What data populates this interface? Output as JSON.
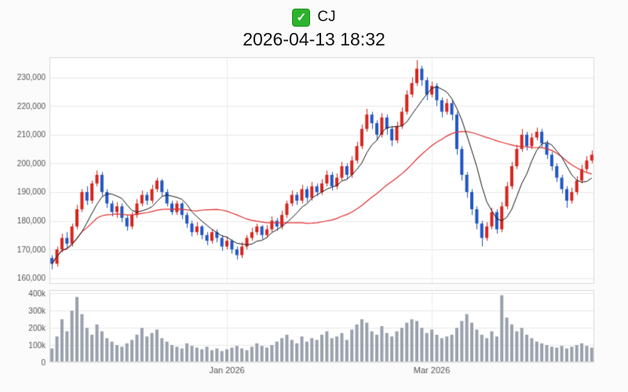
{
  "header": {
    "checkbox": {
      "checked": true,
      "glyph": "✓"
    }
  },
  "chart_data": {
    "type": "candlestick",
    "title": "CJ",
    "timestamp": "2026-04-13 18:32",
    "candle_format": [
      "open",
      "high",
      "low",
      "close"
    ],
    "price_axis": {
      "ylim": [
        158000,
        237000
      ],
      "ticks": [
        {
          "value": 160000,
          "label": "160,000"
        },
        {
          "value": 170000,
          "label": "170,000"
        },
        {
          "value": 180000,
          "label": "180,000"
        },
        {
          "value": 190000,
          "label": "190,000"
        },
        {
          "value": 200000,
          "label": "200,000"
        },
        {
          "value": 210000,
          "label": "210,000"
        },
        {
          "value": 220000,
          "label": "220,000"
        },
        {
          "value": 230000,
          "label": "230,000"
        }
      ]
    },
    "volume_axis": {
      "unit": "k",
      "ylim_k": [
        0,
        420
      ],
      "ticks": [
        {
          "value_k": 0,
          "label": "0"
        },
        {
          "value_k": 100,
          "label": "100k"
        },
        {
          "value_k": 200,
          "label": "200k"
        },
        {
          "value_k": 300,
          "label": "300k"
        },
        {
          "value_k": 400,
          "label": "400k"
        }
      ]
    },
    "x_ticks": [
      {
        "index": 35,
        "label": "Jan 2026"
      },
      {
        "index": 76,
        "label": "Mar 2026"
      }
    ],
    "ma_fast_period": 7,
    "ma_slow_period": 30,
    "colors": {
      "up": "#d6261f",
      "down": "#2257c4",
      "ma_fast": "#1a1a1a",
      "ma_slow": "#e03131",
      "volume": "#9aa1ad",
      "grid": "#e9e9e9",
      "border": "#d9d9d9",
      "tick_text": "#555555"
    },
    "candles": [
      [
        167000,
        168000,
        163000,
        165000
      ],
      [
        165000,
        171000,
        164000,
        170000
      ],
      [
        170000,
        175500,
        169000,
        174000
      ],
      [
        174000,
        176000,
        170500,
        172000
      ],
      [
        172000,
        179000,
        171000,
        178000
      ],
      [
        178000,
        185500,
        177000,
        184000
      ],
      [
        184000,
        191000,
        183000,
        190000
      ],
      [
        190000,
        192000,
        185500,
        187000
      ],
      [
        187000,
        194000,
        186000,
        193000
      ],
      [
        193000,
        197500,
        192000,
        196000
      ],
      [
        196000,
        197000,
        188500,
        190000
      ],
      [
        190000,
        191000,
        184500,
        186000
      ],
      [
        186000,
        187000,
        181500,
        183000
      ],
      [
        183000,
        186500,
        181000,
        185000
      ],
      [
        185000,
        186000,
        179500,
        181000
      ],
      [
        181000,
        182000,
        176500,
        178000
      ],
      [
        178000,
        183000,
        177000,
        182000
      ],
      [
        182000,
        187500,
        181000,
        186000
      ],
      [
        186000,
        190500,
        185000,
        189000
      ],
      [
        189000,
        190000,
        185500,
        187000
      ],
      [
        187000,
        192500,
        186000,
        191000
      ],
      [
        191000,
        195000,
        190000,
        194000
      ],
      [
        194000,
        194500,
        188500,
        190000
      ],
      [
        190000,
        191000,
        185000,
        186000
      ],
      [
        186000,
        187000,
        182000,
        183000
      ],
      [
        183000,
        187000,
        182000,
        186000
      ],
      [
        186000,
        186500,
        180500,
        182000
      ],
      [
        182000,
        183000,
        177500,
        179000
      ],
      [
        179000,
        180000,
        174500,
        176000
      ],
      [
        176000,
        179500,
        175000,
        178000
      ],
      [
        178000,
        178500,
        173500,
        175000
      ],
      [
        175000,
        176000,
        171500,
        173000
      ],
      [
        173000,
        177000,
        172000,
        176000
      ],
      [
        176000,
        177000,
        172500,
        174000
      ],
      [
        174000,
        175000,
        169500,
        171000
      ],
      [
        171000,
        174500,
        170000,
        173000
      ],
      [
        173000,
        173500,
        168500,
        170000
      ],
      [
        170000,
        171000,
        166500,
        168000
      ],
      [
        168000,
        172500,
        167000,
        171000
      ],
      [
        171000,
        175000,
        170000,
        174000
      ],
      [
        174000,
        177500,
        173000,
        176000
      ],
      [
        176000,
        179000,
        175000,
        178000
      ],
      [
        178000,
        178500,
        173500,
        175000
      ],
      [
        175000,
        178500,
        174000,
        177000
      ],
      [
        177000,
        181500,
        176000,
        180000
      ],
      [
        180000,
        181000,
        176500,
        178000
      ],
      [
        178000,
        183500,
        177000,
        182000
      ],
      [
        182000,
        187000,
        181000,
        186000
      ],
      [
        186000,
        190500,
        185000,
        189000
      ],
      [
        189000,
        190000,
        185500,
        187000
      ],
      [
        187000,
        192500,
        186000,
        191000
      ],
      [
        191000,
        192000,
        186500,
        188000
      ],
      [
        188000,
        193500,
        187000,
        192000
      ],
      [
        192000,
        193000,
        188500,
        190000
      ],
      [
        190000,
        194500,
        189000,
        193000
      ],
      [
        193000,
        197500,
        192000,
        196000
      ],
      [
        196000,
        197000,
        190500,
        192000
      ],
      [
        192000,
        196500,
        191000,
        195000
      ],
      [
        195000,
        200500,
        194000,
        199000
      ],
      [
        199000,
        200000,
        194500,
        196000
      ],
      [
        196000,
        202500,
        195000,
        201000
      ],
      [
        201000,
        207500,
        200000,
        206000
      ],
      [
        206000,
        213500,
        205000,
        212000
      ],
      [
        212000,
        219000,
        211000,
        217000
      ],
      [
        217000,
        218000,
        212000,
        214000
      ],
      [
        214000,
        215000,
        208000,
        210000
      ],
      [
        210000,
        217500,
        209000,
        216000
      ],
      [
        216000,
        217000,
        210000,
        212000
      ],
      [
        212000,
        213000,
        206000,
        208000
      ],
      [
        208000,
        214500,
        207000,
        213000
      ],
      [
        213000,
        219500,
        212000,
        218000
      ],
      [
        218000,
        225500,
        217000,
        224000
      ],
      [
        224000,
        230000,
        223000,
        228000
      ],
      [
        228000,
        236000,
        227000,
        233000
      ],
      [
        233000,
        234000,
        227000,
        229000
      ],
      [
        229000,
        230000,
        222000,
        224000
      ],
      [
        224000,
        228500,
        223000,
        227000
      ],
      [
        227000,
        228000,
        220000,
        222000
      ],
      [
        222000,
        223000,
        216000,
        218000
      ],
      [
        218000,
        222500,
        217000,
        221000
      ],
      [
        221000,
        222000,
        215000,
        217000
      ],
      [
        217000,
        218000,
        203000,
        205000
      ],
      [
        205000,
        206000,
        194000,
        196000
      ],
      [
        196000,
        197000,
        188000,
        190000
      ],
      [
        190000,
        191000,
        182000,
        184000
      ],
      [
        184000,
        185000,
        177000,
        179000
      ],
      [
        179000,
        180000,
        171000,
        174000
      ],
      [
        174000,
        179500,
        173000,
        178000
      ],
      [
        178000,
        184500,
        177000,
        183000
      ],
      [
        183000,
        184000,
        175500,
        177000
      ],
      [
        177000,
        186500,
        176000,
        185000
      ],
      [
        185000,
        193500,
        184000,
        192000
      ],
      [
        192000,
        200500,
        191000,
        199000
      ],
      [
        199000,
        206500,
        198000,
        205000
      ],
      [
        205000,
        212000,
        204000,
        210000
      ],
      [
        210000,
        211000,
        204500,
        206000
      ],
      [
        206000,
        210500,
        205000,
        209000
      ],
      [
        209000,
        212500,
        208000,
        211000
      ],
      [
        211000,
        212000,
        205500,
        207000
      ],
      [
        207000,
        208000,
        201500,
        203000
      ],
      [
        203000,
        204000,
        197500,
        199000
      ],
      [
        199000,
        200000,
        193500,
        195000
      ],
      [
        195000,
        196000,
        189500,
        191000
      ],
      [
        191000,
        192000,
        184500,
        187000
      ],
      [
        187000,
        191500,
        186000,
        190000
      ],
      [
        190000,
        195500,
        189000,
        194000
      ],
      [
        194000,
        199500,
        193000,
        198000
      ],
      [
        198000,
        202500,
        197000,
        201000
      ],
      [
        201000,
        204500,
        200000,
        203000
      ]
    ],
    "volumes_k": [
      80,
      150,
      250,
      180,
      300,
      380,
      280,
      200,
      160,
      220,
      180,
      140,
      120,
      100,
      90,
      110,
      130,
      160,
      200,
      150,
      170,
      190,
      140,
      120,
      100,
      90,
      80,
      110,
      95,
      85,
      75,
      90,
      70,
      80,
      65,
      75,
      85,
      95,
      80,
      70,
      90,
      110,
      95,
      85,
      100,
      120,
      140,
      160,
      130,
      110,
      150,
      120,
      140,
      130,
      160,
      180,
      140,
      150,
      170,
      130,
      190,
      220,
      250,
      230,
      180,
      160,
      210,
      170,
      150,
      180,
      200,
      230,
      250,
      240,
      200,
      170,
      190,
      160,
      140,
      150,
      160,
      200,
      240,
      280,
      230,
      190,
      160,
      140,
      180,
      150,
      390,
      260,
      220,
      180,
      200,
      160,
      140,
      120,
      110,
      100,
      90,
      85,
      95,
      80,
      90,
      100,
      110,
      95,
      85
    ]
  }
}
